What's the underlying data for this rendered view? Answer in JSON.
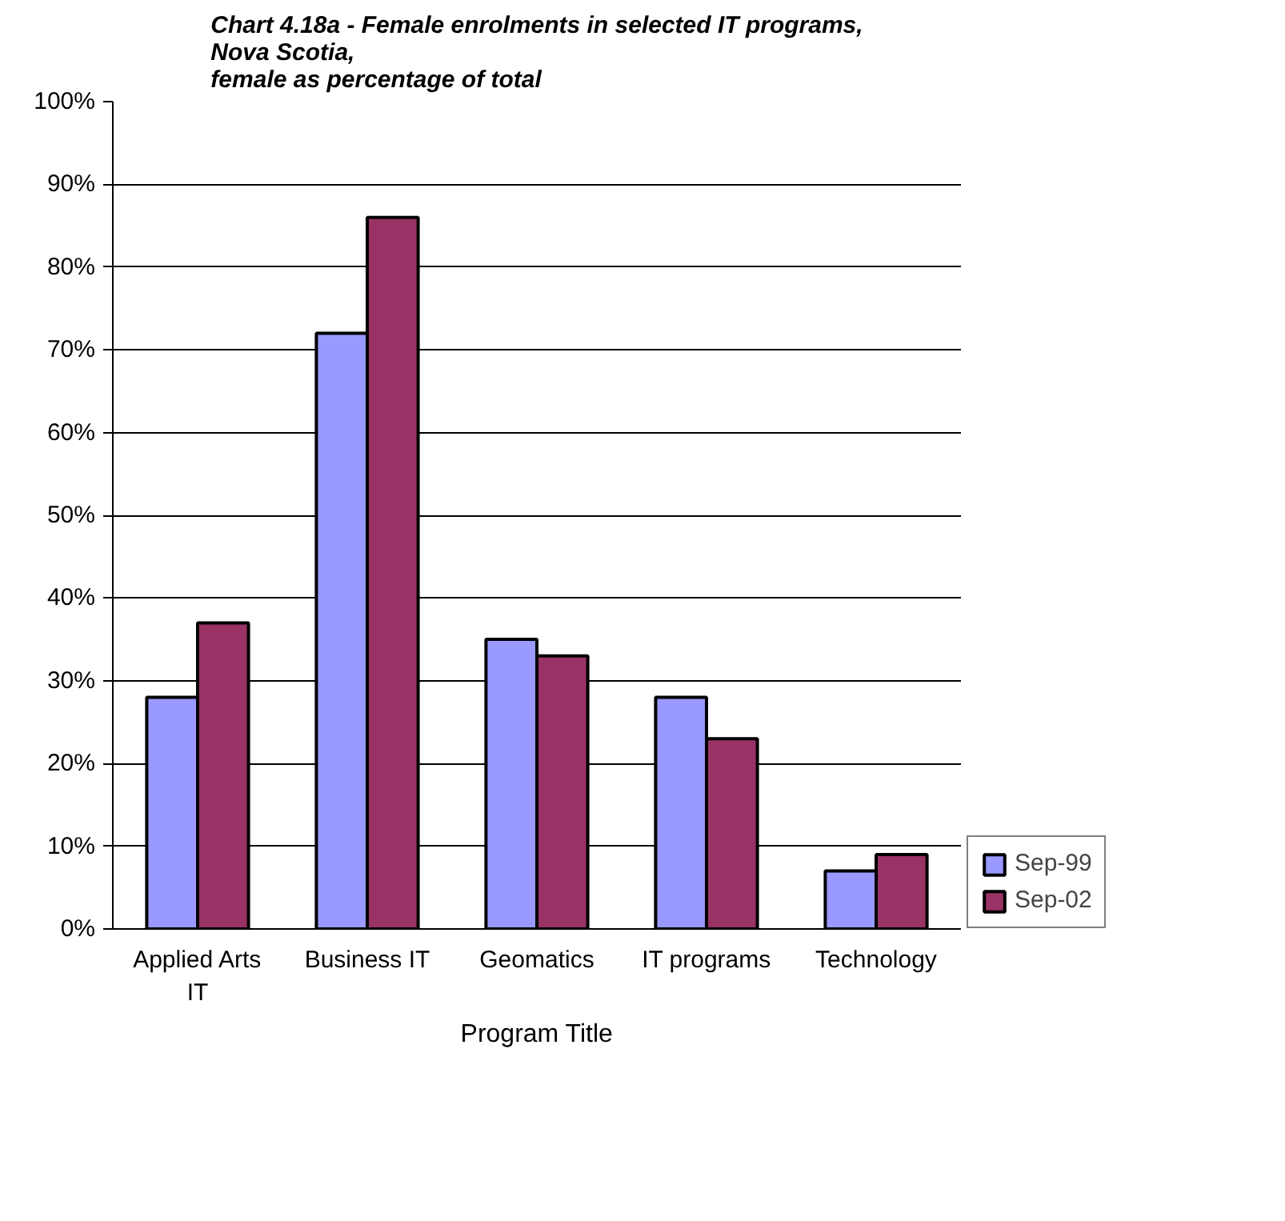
{
  "chart_data": {
    "type": "bar",
    "title": "Chart 4.18a - Female enrolments in selected IT programs,\nNova Scotia,\nfemale as percentage of total",
    "xlabel": "Program Title",
    "categories": [
      "Applied Arts IT",
      "Business IT",
      "Geomatics",
      "IT programs",
      "Technology"
    ],
    "series": [
      {
        "name": "Sep-99",
        "color": "#9999ff",
        "values": [
          28,
          72,
          35,
          28,
          7
        ]
      },
      {
        "name": "Sep-02",
        "color": "#993366",
        "values": [
          37,
          86,
          33,
          23,
          9
        ]
      }
    ],
    "ylim": [
      0,
      100
    ],
    "yticks": [
      {
        "value": 0,
        "label": "0%"
      },
      {
        "value": 10,
        "label": "10%"
      },
      {
        "value": 20,
        "label": "20%"
      },
      {
        "value": 30,
        "label": "30%"
      },
      {
        "value": 40,
        "label": "40%"
      },
      {
        "value": 50,
        "label": "50%"
      },
      {
        "value": 60,
        "label": "60%"
      },
      {
        "value": 70,
        "label": "70%"
      },
      {
        "value": 80,
        "label": "80%"
      },
      {
        "value": 90,
        "label": "90%"
      },
      {
        "value": 100,
        "label": "100%"
      }
    ],
    "grid": "y",
    "legend": "right"
  }
}
